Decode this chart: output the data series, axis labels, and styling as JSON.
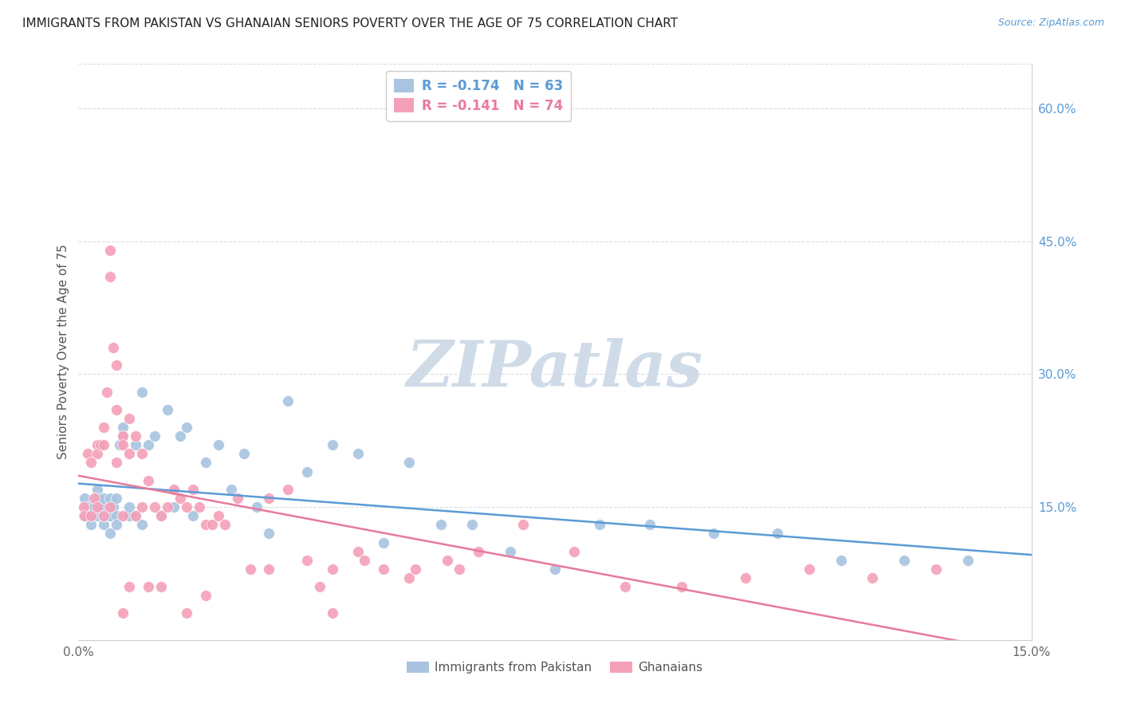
{
  "title": "IMMIGRANTS FROM PAKISTAN VS GHANAIAN SENIORS POVERTY OVER THE AGE OF 75 CORRELATION CHART",
  "source": "Source: ZipAtlas.com",
  "ylabel": "Seniors Poverty Over the Age of 75",
  "xmin": 0.0,
  "xmax": 0.15,
  "ymin": 0.0,
  "ymax": 0.65,
  "yticks": [
    0.15,
    0.3,
    0.45,
    0.6
  ],
  "ytick_labels": [
    "15.0%",
    "30.0%",
    "45.0%",
    "60.0%"
  ],
  "blue_R": -0.174,
  "blue_N": 63,
  "pink_R": -0.141,
  "pink_N": 74,
  "blue_color": "#a8c4e0",
  "pink_color": "#f4a0b8",
  "blue_line_color": "#5b9bd5",
  "pink_line_color": "#e87a9a",
  "blue_label": "Immigrants from Pakistan",
  "pink_label": "Ghanaians",
  "watermark_text": "ZIPatlas",
  "watermark_color": "#cfdce8",
  "blue_x": [
    0.0008,
    0.001,
    0.0015,
    0.002,
    0.002,
    0.0025,
    0.003,
    0.003,
    0.003,
    0.0035,
    0.004,
    0.004,
    0.004,
    0.004,
    0.0045,
    0.005,
    0.005,
    0.005,
    0.005,
    0.0055,
    0.006,
    0.006,
    0.006,
    0.0065,
    0.007,
    0.007,
    0.008,
    0.008,
    0.009,
    0.009,
    0.01,
    0.01,
    0.011,
    0.012,
    0.013,
    0.014,
    0.015,
    0.016,
    0.017,
    0.018,
    0.02,
    0.022,
    0.024,
    0.026,
    0.028,
    0.03,
    0.033,
    0.036,
    0.04,
    0.044,
    0.048,
    0.052,
    0.057,
    0.062,
    0.068,
    0.075,
    0.082,
    0.09,
    0.1,
    0.11,
    0.12,
    0.13,
    0.14
  ],
  "blue_y": [
    0.14,
    0.16,
    0.15,
    0.13,
    0.14,
    0.15,
    0.17,
    0.14,
    0.16,
    0.15,
    0.13,
    0.15,
    0.14,
    0.16,
    0.14,
    0.15,
    0.14,
    0.16,
    0.12,
    0.15,
    0.14,
    0.16,
    0.13,
    0.22,
    0.24,
    0.23,
    0.14,
    0.15,
    0.14,
    0.22,
    0.13,
    0.28,
    0.22,
    0.23,
    0.14,
    0.26,
    0.15,
    0.23,
    0.24,
    0.14,
    0.2,
    0.22,
    0.17,
    0.21,
    0.15,
    0.12,
    0.27,
    0.19,
    0.22,
    0.21,
    0.11,
    0.2,
    0.13,
    0.13,
    0.1,
    0.08,
    0.13,
    0.13,
    0.12,
    0.12,
    0.09,
    0.09,
    0.09
  ],
  "pink_x": [
    0.0008,
    0.001,
    0.0015,
    0.002,
    0.002,
    0.0025,
    0.003,
    0.003,
    0.003,
    0.0035,
    0.004,
    0.004,
    0.004,
    0.0045,
    0.005,
    0.005,
    0.005,
    0.0055,
    0.006,
    0.006,
    0.006,
    0.007,
    0.007,
    0.007,
    0.008,
    0.008,
    0.009,
    0.009,
    0.01,
    0.01,
    0.011,
    0.011,
    0.012,
    0.013,
    0.014,
    0.015,
    0.016,
    0.017,
    0.018,
    0.019,
    0.02,
    0.021,
    0.022,
    0.023,
    0.025,
    0.027,
    0.03,
    0.033,
    0.036,
    0.04,
    0.044,
    0.048,
    0.053,
    0.058,
    0.063,
    0.07,
    0.078,
    0.086,
    0.095,
    0.105,
    0.115,
    0.125,
    0.135,
    0.04,
    0.008,
    0.007,
    0.013,
    0.017,
    0.02,
    0.03,
    0.038,
    0.045,
    0.052,
    0.06
  ],
  "pink_y": [
    0.15,
    0.14,
    0.21,
    0.2,
    0.14,
    0.16,
    0.22,
    0.21,
    0.15,
    0.22,
    0.24,
    0.22,
    0.14,
    0.28,
    0.44,
    0.41,
    0.15,
    0.33,
    0.31,
    0.2,
    0.26,
    0.23,
    0.22,
    0.14,
    0.25,
    0.21,
    0.23,
    0.14,
    0.15,
    0.21,
    0.18,
    0.06,
    0.15,
    0.14,
    0.15,
    0.17,
    0.16,
    0.15,
    0.17,
    0.15,
    0.13,
    0.13,
    0.14,
    0.13,
    0.16,
    0.08,
    0.16,
    0.17,
    0.09,
    0.08,
    0.1,
    0.08,
    0.08,
    0.09,
    0.1,
    0.13,
    0.1,
    0.06,
    0.06,
    0.07,
    0.08,
    0.07,
    0.08,
    0.03,
    0.06,
    0.03,
    0.06,
    0.03,
    0.05,
    0.08,
    0.06,
    0.09,
    0.07,
    0.08
  ]
}
